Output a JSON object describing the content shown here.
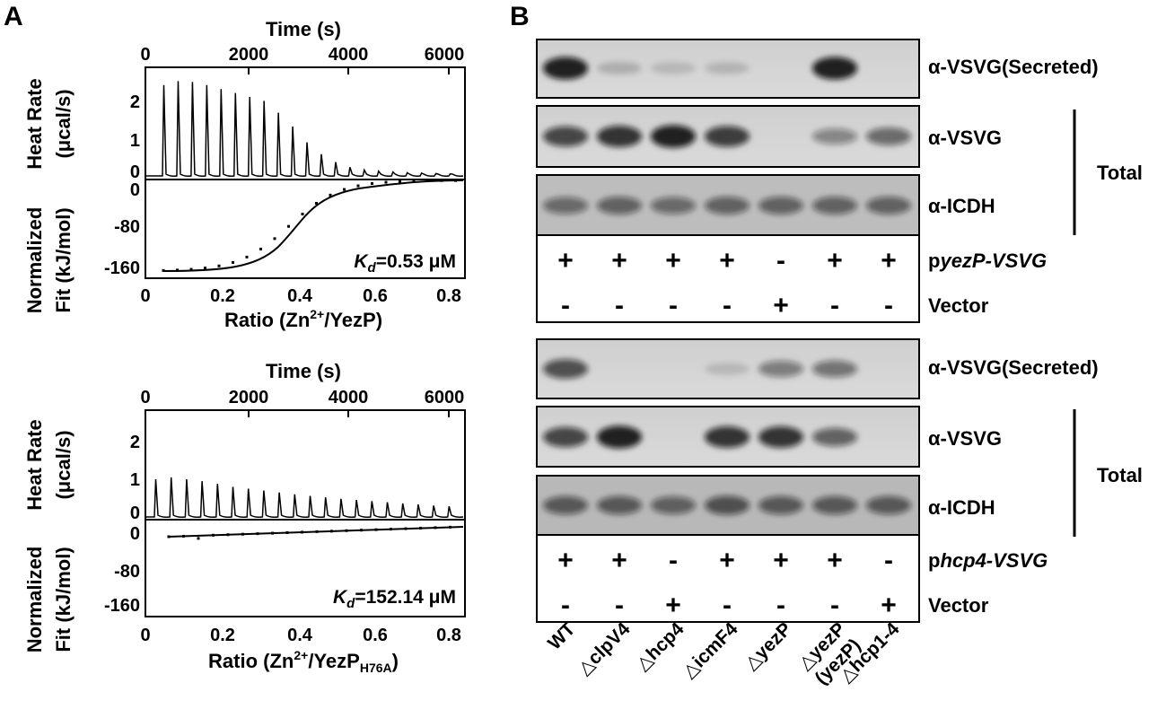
{
  "panel_a": {
    "letter": "A",
    "experiments": [
      {
        "time_axis": {
          "label": "Time (s)",
          "ticks": [
            "0",
            "2000",
            "4000",
            "6000"
          ]
        },
        "heat_axis": {
          "label_line1": "Heat Rate",
          "label_line2": "(μcal/s)",
          "ticks": [
            "2",
            "1",
            "0"
          ]
        },
        "fit_axis": {
          "label_line1": "Normalized",
          "label_line2": "Fit (kJ/mol)",
          "ticks": [
            "0",
            "-80",
            "-160"
          ]
        },
        "ratio_axis": {
          "label_prefix": "Ratio (Zn",
          "label_sup": "2+",
          "label_mid": "/YezP",
          "label_sub": "",
          "label_suffix": ")",
          "ticks": [
            "0",
            "0.2",
            "0.4",
            "0.6",
            "0.8"
          ]
        },
        "kd_symbol": "K",
        "kd_sub": "d",
        "kd_value": "=0.53 μM",
        "peak_heights": [
          2.3,
          2.4,
          2.38,
          2.3,
          2.2,
          2.1,
          2.0,
          1.9,
          1.6,
          1.25,
          0.85,
          0.55,
          0.35,
          0.22,
          0.15,
          0.12,
          0.1,
          0.08,
          0.07,
          0.06,
          0.05
        ]
      },
      {
        "time_axis": {
          "label": "Time (s)",
          "ticks": [
            "0",
            "2000",
            "4000",
            "6000"
          ]
        },
        "heat_axis": {
          "label_line1": "Heat Rate",
          "label_line2": "(μcal/s)",
          "ticks": [
            "2",
            "1",
            "0"
          ]
        },
        "fit_axis": {
          "label_line1": "Normalized",
          "label_line2": "Fit (kJ/mol)",
          "ticks": [
            "0",
            "-80",
            "-160"
          ]
        },
        "ratio_axis": {
          "label_prefix": "Ratio (Zn",
          "label_sup": "2+",
          "label_mid": "/YezP",
          "label_sub": "H76A",
          "label_suffix": ")",
          "ticks": [
            "0",
            "0.2",
            "0.4",
            "0.6",
            "0.8"
          ]
        },
        "kd_symbol": "K",
        "kd_sub": "d",
        "kd_value": "=152.14 μM",
        "peak_heights": [
          1.0,
          1.05,
          1.0,
          0.95,
          0.88,
          0.8,
          0.75,
          0.7,
          0.65,
          0.6,
          0.56,
          0.52,
          0.48,
          0.45,
          0.42,
          0.39,
          0.36,
          0.33,
          0.3,
          0.28
        ]
      }
    ]
  },
  "panel_b": {
    "letter": "B",
    "group_label": "Total",
    "blocks": [
      {
        "blots": [
          {
            "label": "α-VSVG(Secreted)",
            "bands": [
              0.95,
              0.15,
              0.1,
              0.12,
              0.0,
              0.95,
              0.0
            ]
          },
          {
            "label": "α-VSVG",
            "bands": [
              0.75,
              0.85,
              0.95,
              0.8,
              0.0,
              0.4,
              0.55
            ]
          },
          {
            "label": "α-ICDH",
            "bands": [
              0.5,
              0.55,
              0.5,
              0.55,
              0.55,
              0.55,
              0.55
            ]
          }
        ],
        "rows": [
          {
            "label_prefix": "p",
            "label_italic": "yezP-VSVG",
            "signs": [
              "+",
              "+",
              "+",
              "+",
              "-",
              "+",
              "+"
            ]
          },
          {
            "label_prefix": "Vector",
            "label_italic": "",
            "signs": [
              "-",
              "-",
              "-",
              "-",
              "+",
              "-",
              "-"
            ]
          }
        ]
      },
      {
        "blots": [
          {
            "label": "α-VSVG(Secreted)",
            "bands": [
              0.7,
              0.0,
              0.0,
              0.1,
              0.45,
              0.5,
              0.0
            ]
          },
          {
            "label": "α-VSVG",
            "bands": [
              0.75,
              0.95,
              0.0,
              0.85,
              0.85,
              0.6,
              0.0
            ]
          },
          {
            "label": "α-ICDH",
            "bands": [
              0.6,
              0.6,
              0.55,
              0.65,
              0.6,
              0.6,
              0.6
            ]
          }
        ],
        "rows": [
          {
            "label_prefix": "p",
            "label_italic": "hcp4-VSVG",
            "signs": [
              "+",
              "+",
              "-",
              "+",
              "+",
              "+",
              "-"
            ]
          },
          {
            "label_prefix": "Vector",
            "label_italic": "",
            "signs": [
              "-",
              "-",
              "+",
              "-",
              "-",
              "-",
              "+"
            ]
          }
        ]
      }
    ],
    "lanes": [
      {
        "line1": "WT",
        "line2": ""
      },
      {
        "line1": "△clpV4",
        "line2": ""
      },
      {
        "line1": "△hcp4",
        "line2": ""
      },
      {
        "line1": "△icmF4",
        "line2": ""
      },
      {
        "line1": "△yezP",
        "line2": ""
      },
      {
        "line1": "△yezP",
        "line2": "(yezP)"
      },
      {
        "line1": "△hcp1-4",
        "line2": ""
      }
    ],
    "colors": {
      "blot_bg": "#d2d2d2",
      "band": "#111111",
      "frame": "#000000"
    }
  }
}
